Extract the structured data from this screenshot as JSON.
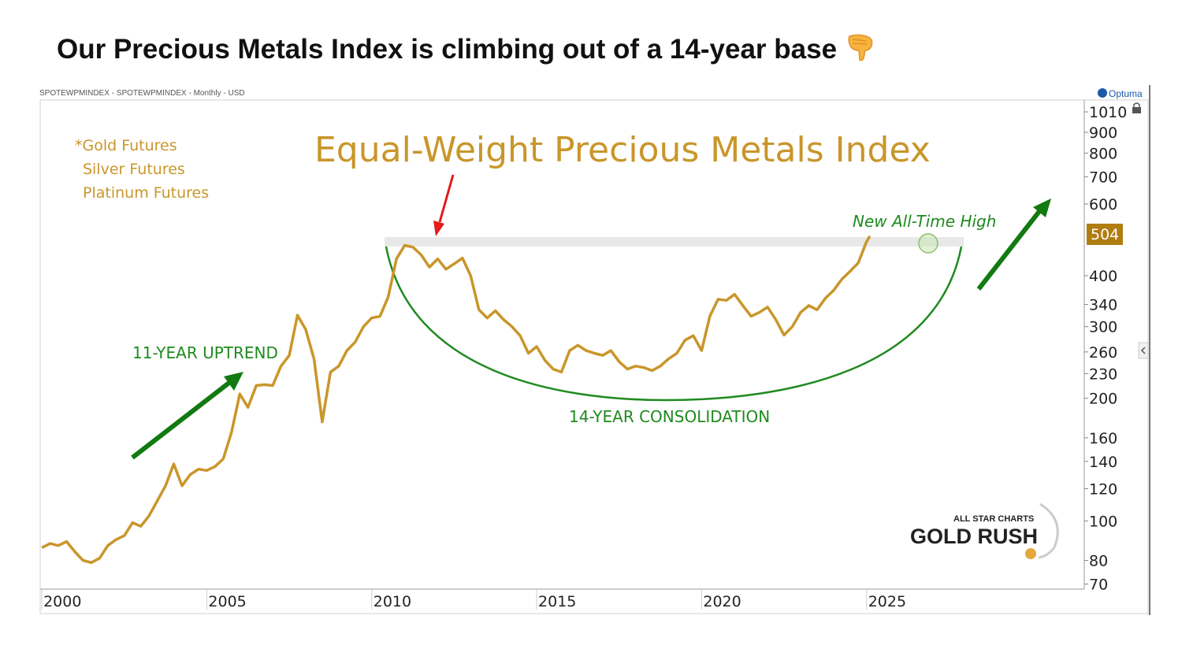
{
  "headline": "Our Precious Metals Index is climbing out of a 14-year base",
  "headline_emoji": "pointing-down-hand",
  "chart_header": "SPOTEWPMINDEX - SPOTEWPMINDEX - Monthly - USD",
  "brand": "Optuma",
  "colors": {
    "price_line": "#c9962a",
    "title_gold": "#c9962a",
    "annotation_green": "#1f8a1f",
    "arrow_green": "#117a11",
    "red_arrow": "#e31b1b",
    "last_price_bg": "#b07d12",
    "axis": "#9a9a9a"
  },
  "watermark": {
    "top": "ALL STAR CHARTS",
    "bottom": "GOLD RUSH"
  },
  "chart_data": {
    "type": "line",
    "title": "Equal-Weight Precious Metals Index",
    "components": [
      "*Gold Futures",
      "Silver Futures",
      "Platinum Futures"
    ],
    "xlabel": "",
    "ylabel": "",
    "y_scale": "log",
    "ylim": [
      68,
      1080
    ],
    "xlim": [
      1999.95,
      2031.6
    ],
    "x_ticks": [
      "2000",
      "2005",
      "2010",
      "2015",
      "2020",
      "2025"
    ],
    "y_ticks": [
      "1010",
      "900",
      "800",
      "700",
      "600",
      "400",
      "340",
      "300",
      "260",
      "230",
      "200",
      "160",
      "140",
      "120",
      "100",
      "80",
      "70"
    ],
    "last_price": "504",
    "series": [
      {
        "name": "",
        "x": [
          2000.0,
          2000.25,
          2000.5,
          2000.75,
          2001.0,
          2001.25,
          2001.5,
          2001.75,
          2002.0,
          2002.25,
          2002.5,
          2002.75,
          2003.0,
          2003.25,
          2003.5,
          2003.75,
          2004.0,
          2004.25,
          2004.5,
          2004.75,
          2005.0,
          2005.25,
          2005.5,
          2005.75,
          2006.0,
          2006.25,
          2006.5,
          2006.75,
          2007.0,
          2007.25,
          2007.5,
          2007.75,
          2008.0,
          2008.25,
          2008.5,
          2008.75,
          2009.0,
          2009.25,
          2009.5,
          2009.75,
          2010.0,
          2010.25,
          2010.5,
          2010.75,
          2011.0,
          2011.25,
          2011.5,
          2011.75,
          2012.0,
          2012.25,
          2012.5,
          2012.75,
          2013.0,
          2013.25,
          2013.5,
          2013.75,
          2014.0,
          2014.25,
          2014.5,
          2014.75,
          2015.0,
          2015.25,
          2015.5,
          2015.75,
          2016.0,
          2016.25,
          2016.5,
          2016.75,
          2017.0,
          2017.25,
          2017.5,
          2017.75,
          2018.0,
          2018.25,
          2018.5,
          2018.75,
          2019.0,
          2019.25,
          2019.5,
          2019.75,
          2020.0,
          2020.25,
          2020.5,
          2020.75,
          2021.0,
          2021.25,
          2021.5,
          2021.75,
          2022.0,
          2022.25,
          2022.5,
          2022.75,
          2023.0,
          2023.25,
          2023.5,
          2023.75,
          2024.0,
          2024.25,
          2024.5,
          2024.75,
          2025.0,
          2025.1
        ],
        "values": [
          86,
          88,
          87,
          89,
          84,
          80,
          79,
          81,
          87,
          90,
          92,
          99,
          97,
          103,
          112,
          122,
          138,
          122,
          130,
          134,
          133,
          136,
          142,
          165,
          205,
          190,
          215,
          216,
          215,
          240,
          255,
          320,
          295,
          250,
          175,
          232,
          240,
          262,
          275,
          300,
          315,
          318,
          355,
          440,
          475,
          470,
          450,
          420,
          440,
          415,
          428,
          442,
          400,
          330,
          315,
          328,
          312,
          300,
          285,
          258,
          268,
          248,
          236,
          232,
          262,
          270,
          262,
          258,
          255,
          262,
          246,
          236,
          240,
          238,
          234,
          240,
          250,
          258,
          278,
          285,
          262,
          318,
          350,
          348,
          360,
          338,
          318,
          325,
          335,
          312,
          286,
          300,
          325,
          338,
          330,
          352,
          368,
          392,
          410,
          430,
          485,
          500
        ]
      }
    ],
    "annotations": [
      "11-YEAR UPTREND",
      "14-YEAR CONSOLIDATION",
      "New All-Time High"
    ]
  }
}
